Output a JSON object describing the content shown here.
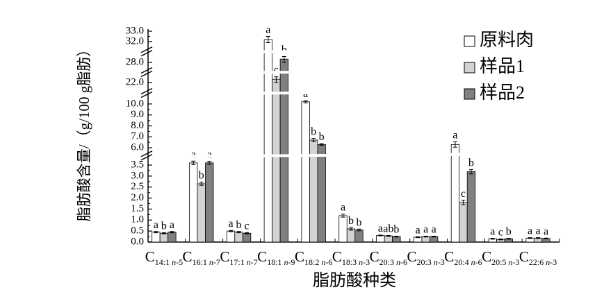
{
  "chart_data": {
    "type": "bar",
    "x_label": "脂肪酸种类",
    "y_label": "脂肪酸含量/（g/100 g脂肪）",
    "categories": [
      "C14:1 n-5",
      "C16:1 n-7",
      "C17:1 n-7",
      "C18:1 n-9",
      "C18:2 n-6",
      "C18:3 n-3",
      "C20:3 n-6",
      "C20:3 n-3",
      "C20:4 n-6",
      "C20:5 n-3",
      "C22:6 n-3"
    ],
    "series": [
      {
        "name": "原料肉",
        "color": "#ffffff",
        "values": [
          0.45,
          3.6,
          0.5,
          32.2,
          10.2,
          1.2,
          0.3,
          0.22,
          6.3,
          0.15,
          0.18
        ],
        "errors": [
          0.03,
          0.08,
          0.03,
          0.3,
          0.1,
          0.07,
          0.02,
          0.02,
          0.25,
          0.02,
          0.02
        ],
        "letters": [
          "a",
          "a",
          "a",
          "a",
          "a",
          "a",
          "a",
          "a",
          "a",
          "a",
          "a"
        ]
      },
      {
        "name": "样品1",
        "color": "#d3d3d3",
        "values": [
          0.4,
          2.65,
          0.45,
          22.3,
          6.7,
          0.6,
          0.28,
          0.25,
          1.8,
          0.12,
          0.18
        ],
        "errors": [
          0.03,
          0.07,
          0.03,
          0.3,
          0.15,
          0.06,
          0.02,
          0.02,
          0.1,
          0.02,
          0.02
        ],
        "letters": [
          "b",
          "b",
          "b",
          "c",
          "b",
          "b",
          "ab",
          "a",
          "c",
          "c",
          "a"
        ]
      },
      {
        "name": "样品2",
        "color": "#808080",
        "values": [
          0.45,
          3.6,
          0.4,
          28.3,
          6.3,
          0.55,
          0.25,
          0.25,
          3.2,
          0.15,
          0.16
        ],
        "errors": [
          0.03,
          0.07,
          0.03,
          0.3,
          0.08,
          0.04,
          0.02,
          0.02,
          0.1,
          0.02,
          0.02
        ],
        "letters": [
          "a",
          "a",
          "c",
          "b",
          "b",
          "b",
          "b",
          "a",
          "b",
          "b",
          "a"
        ]
      }
    ],
    "y_segments": [
      {
        "ylim": [
          0,
          3.8
        ],
        "yticks": [
          {
            "value": 0,
            "label": "0.0"
          },
          {
            "value": 0.5,
            "label": "0.5"
          },
          {
            "value": 1,
            "label": "1.0"
          },
          {
            "value": 1.5,
            "label": "1.5"
          },
          {
            "value": 2,
            "label": "2.0"
          },
          {
            "value": 2.5,
            "label": "2.5"
          },
          {
            "value": 3,
            "label": "3.0"
          },
          {
            "value": 3.5,
            "label": "3.5"
          }
        ]
      },
      {
        "ylim": [
          5.5,
          10.5
        ],
        "yticks": [
          {
            "value": 6,
            "label": "6.0"
          },
          {
            "value": 7,
            "label": "7.0"
          },
          {
            "value": 8,
            "label": "8.0"
          },
          {
            "value": 9,
            "label": "9.0"
          },
          {
            "value": 10,
            "label": "10.0"
          }
        ]
      },
      {
        "ylim": [
          21.5,
          22.5
        ],
        "yticks": [
          {
            "value": 22,
            "label": "22.0"
          }
        ]
      },
      {
        "ylim": [
          27.5,
          28.5
        ],
        "yticks": [
          {
            "value": 28,
            "label": "28.0"
          }
        ]
      },
      {
        "ylim": [
          31.5,
          33.2
        ],
        "yticks": [
          {
            "value": 32,
            "label": "32.0"
          },
          {
            "value": 33,
            "label": "33.0"
          }
        ]
      }
    ],
    "legend": "upper right"
  }
}
